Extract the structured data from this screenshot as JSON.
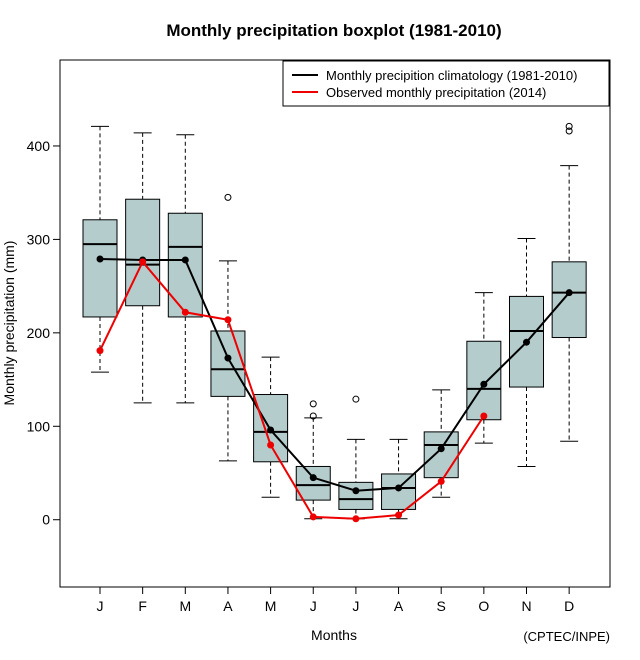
{
  "chart_data": {
    "type": "boxplot",
    "title": "Monthly precipitation boxplot (1981-2010)",
    "xlabel": "Months",
    "ylabel": "Monthly precipitation (mm)",
    "credit": "(CPTEC/INPE)",
    "categories": [
      "J",
      "F",
      "M",
      "A",
      "M",
      "J",
      "J",
      "A",
      "S",
      "O",
      "N",
      "D"
    ],
    "ylim": [
      -72,
      492
    ],
    "yticks": [
      0,
      100,
      200,
      300,
      400
    ],
    "grid": false,
    "box_color": "#b4cccc",
    "boxes": [
      {
        "whisker_low": 158,
        "q1": 217,
        "median": 295,
        "q3": 321,
        "whisker_high": 421,
        "outliers": []
      },
      {
        "whisker_low": 125,
        "q1": 229,
        "median": 273,
        "q3": 343,
        "whisker_high": 414,
        "outliers": []
      },
      {
        "whisker_low": 125,
        "q1": 217,
        "median": 292,
        "q3": 328,
        "whisker_high": 412,
        "outliers": []
      },
      {
        "whisker_low": 63,
        "q1": 132,
        "median": 161,
        "q3": 202,
        "whisker_high": 277,
        "outliers": [
          345
        ]
      },
      {
        "whisker_low": 24,
        "q1": 62,
        "median": 94,
        "q3": 134,
        "whisker_high": 174,
        "outliers": []
      },
      {
        "whisker_low": 1,
        "q1": 21,
        "median": 37,
        "q3": 57,
        "whisker_high": 109,
        "outliers": [
          111,
          124
        ]
      },
      {
        "whisker_low": 1,
        "q1": 11,
        "median": 22,
        "q3": 40,
        "whisker_high": 86,
        "outliers": [
          129
        ]
      },
      {
        "whisker_low": 1,
        "q1": 11,
        "median": 34,
        "q3": 49,
        "whisker_high": 86,
        "outliers": []
      },
      {
        "whisker_low": 24,
        "q1": 45,
        "median": 80,
        "q3": 94,
        "whisker_high": 139,
        "outliers": []
      },
      {
        "whisker_low": 82,
        "q1": 107,
        "median": 140,
        "q3": 191,
        "whisker_high": 243,
        "outliers": []
      },
      {
        "whisker_low": 57,
        "q1": 142,
        "median": 202,
        "q3": 239,
        "whisker_high": 301,
        "outliers": []
      },
      {
        "whisker_low": 84,
        "q1": 195,
        "median": 243,
        "q3": 276,
        "whisker_high": 379,
        "outliers": [
          416,
          421
        ]
      }
    ],
    "series": [
      {
        "name": "Monthly precipition climatology (1981-2010)",
        "color": "#000000",
        "values": [
          279,
          278,
          278,
          173,
          96,
          45,
          31,
          34,
          76,
          145,
          190,
          243
        ]
      },
      {
        "name": "Observed monthly precipitation (2014)",
        "color": "#ee0000",
        "values": [
          181,
          276,
          222,
          214,
          80,
          3,
          1,
          5,
          41,
          111,
          null,
          null
        ]
      }
    ],
    "legend_position": "top-right"
  }
}
